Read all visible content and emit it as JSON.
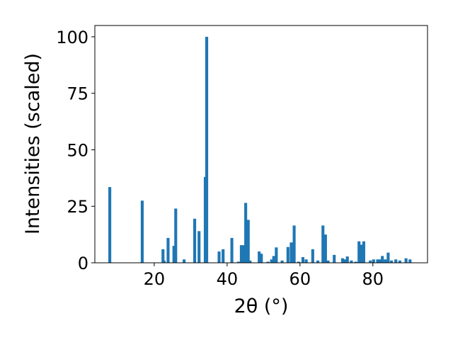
{
  "chart_data": {
    "type": "bar",
    "xlabel": "2θ (°)",
    "ylabel": "Intensities (scaled)",
    "xlim": [
      3.7,
      95.0
    ],
    "ylim": [
      0,
      105
    ],
    "xticks": [
      20,
      40,
      60,
      80
    ],
    "yticks": [
      0,
      25,
      50,
      75,
      100
    ],
    "grid": false,
    "color": "#1f77b4",
    "bar_width": 0.8,
    "series": [
      {
        "x": [
          7.8,
          16.7,
          22.4,
          22.7,
          23.8,
          25.4,
          25.9,
          28.2,
          31.1,
          32.3,
          34.0,
          34.4,
          37.8,
          38.9,
          41.3,
          43.1,
          43.9,
          44.5,
          45.1,
          45.8,
          46.3,
          48.8,
          49.4,
          51.2,
          52.2,
          52.8,
          53.5,
          55.1,
          56.7,
          57.6,
          58.4,
          59.6,
          60.8,
          61.7,
          63.5,
          64.9,
          66.3,
          67.0,
          67.7,
          69.4,
          71.7,
          72.3,
          73.0,
          74.1,
          75.3,
          76.2,
          76.8,
          77.5,
          79.3,
          80.2,
          81.3,
          81.9,
          82.6,
          83.4,
          84.2,
          85.1,
          86.3,
          87.4,
          89.1,
          90.2
        ],
        "y": [
          33.5,
          27.5,
          6.0,
          1.0,
          11.0,
          7.5,
          24.0,
          1.5,
          19.5,
          14.0,
          38.0,
          100.0,
          5.0,
          6.0,
          11.0,
          0.5,
          7.8,
          7.8,
          26.5,
          19.0,
          1.0,
          5.0,
          4.0,
          0.5,
          1.5,
          3.0,
          6.8,
          1.0,
          7.0,
          9.0,
          16.5,
          0.5,
          2.5,
          1.5,
          6.0,
          1.0,
          16.5,
          12.5,
          1.0,
          3.5,
          2.0,
          1.5,
          2.8,
          1.0,
          0.5,
          9.5,
          8.0,
          9.5,
          1.0,
          1.5,
          1.5,
          1.5,
          3.0,
          1.5,
          4.5,
          1.0,
          1.5,
          1.0,
          2.0,
          1.5
        ]
      }
    ]
  }
}
